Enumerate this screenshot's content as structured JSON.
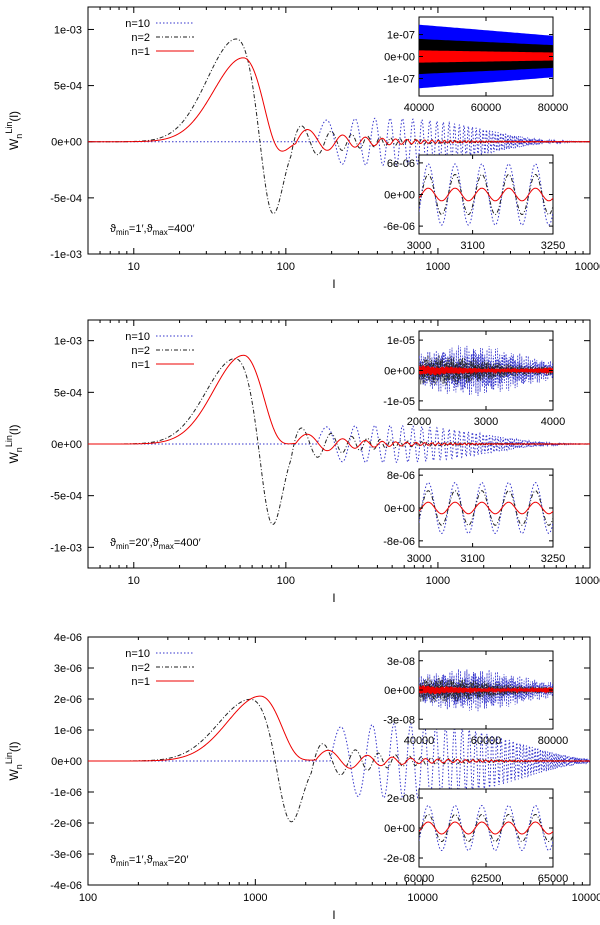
{
  "chart_data": [
    {
      "type": "line",
      "xscale": "log",
      "xlim": [
        5,
        10000
      ],
      "ylim": [
        -0.001,
        0.0012
      ],
      "xticks": [
        10,
        100,
        1000,
        10000
      ],
      "xtick_labels": [
        "10",
        "100",
        "1000",
        "10000"
      ],
      "yticks": [
        -0.001,
        -0.0005,
        0,
        0.0005,
        0.001
      ],
      "ytick_labels": [
        "-1e-03",
        "-5e-04",
        "0e+00",
        "5e-04",
        "1e-03"
      ],
      "xlabel": "l",
      "ylabel_main": "W",
      "ylabel_sub": "n",
      "ylabel_sup": "Lin",
      "ylabel_tail": "(l)",
      "annotation": {
        "t1": "ϑ",
        "s1": "min",
        "m": "=1′,ϑ",
        "s2": "max",
        "e": "=400′"
      },
      "legend": [
        "n=10",
        "n=2",
        "n=1"
      ],
      "legend_loc": "top-left",
      "series": [
        {
          "label": "n=10",
          "color": "#3333cc",
          "dash": "dotted",
          "peak": [
            0,
            0
          ],
          "freq": 0.78,
          "amp": 0.00021,
          "decay": 60
        },
        {
          "label": "n=2",
          "color": "#222222",
          "dash": "dashdot",
          "peak": [
            48,
            0.00092
          ],
          "trough": [
            80,
            -0.00085
          ],
          "freq": 0.52,
          "amp": 0.00018,
          "decay": 120
        },
        {
          "label": "n=1",
          "color": "#ee0000",
          "dash": "solid",
          "peak": [
            53,
            0.00075
          ],
          "trough": [
            86,
            -0.00025
          ],
          "freq": 0.42,
          "amp": 0.00013,
          "decay": 200
        }
      ],
      "insets": [
        {
          "position": "upper",
          "xlim": [
            40000,
            80000
          ],
          "ylim": [
            -1.8e-07,
            1.8e-07
          ],
          "xticks": [
            40000,
            60000,
            80000
          ],
          "xtick_labels": [
            "40000",
            "60000",
            "80000"
          ],
          "yticks": [
            -1e-07,
            0,
            1e-07
          ],
          "ytick_labels": [
            "-1e-07",
            "0e+00",
            "1e-07"
          ],
          "style": "band",
          "bands": [
            {
              "color": "#0000ff",
              "half": 1.45e-07
            },
            {
              "color": "#000000",
              "half": 8e-08
            },
            {
              "color": "#ff0000",
              "half": 2.8e-08
            }
          ]
        },
        {
          "position": "lower",
          "xlim": [
            3000,
            3250
          ],
          "ylim": [
            -7.5e-06,
            7.5e-06
          ],
          "xticks": [
            3000,
            3100,
            3250
          ],
          "xtick_labels": [
            "3000",
            "3100",
            "3250"
          ],
          "yticks": [
            -6e-06,
            0,
            6e-06
          ],
          "ytick_labels": [
            "-6e-06",
            "0e+00",
            "6e-06"
          ],
          "style": "wave",
          "period": 50,
          "waves": [
            {
              "color": "#3333cc",
              "amp": 5.8e-06
            },
            {
              "color": "#222222",
              "amp": 3.8e-06
            },
            {
              "color": "#ee0000",
              "amp": 1.2e-06
            }
          ]
        }
      ]
    },
    {
      "type": "line",
      "xscale": "log",
      "xlim": [
        5,
        10000
      ],
      "ylim": [
        -0.0012,
        0.0012
      ],
      "xticks": [
        10,
        100,
        1000,
        10000
      ],
      "xtick_labels": [
        "10",
        "100",
        "1000",
        "10000"
      ],
      "yticks": [
        -0.001,
        -0.0005,
        0,
        0.0005,
        0.001
      ],
      "ytick_labels": [
        "-1e-03",
        "-5e-04",
        "0e+00",
        "5e-04",
        "1e-03"
      ],
      "xlabel": "l",
      "ylabel_main": "W",
      "ylabel_sub": "n",
      "ylabel_sup": "Lin",
      "ylabel_tail": "(l)",
      "annotation": {
        "t1": "ϑ",
        "s1": "min",
        "m": "=20′,ϑ",
        "s2": "max",
        "e": "=400′"
      },
      "legend": [
        "n=10",
        "n=2",
        "n=1"
      ],
      "legend_loc": "top-left",
      "series": [
        {
          "label": "n=10",
          "color": "#3333cc",
          "dash": "dotted",
          "peak": [
            0,
            0
          ],
          "freq": 0.78,
          "amp": 0.00018,
          "decay": 60
        },
        {
          "label": "n=2",
          "color": "#222222",
          "dash": "dashdot",
          "peak": [
            47,
            0.00083
          ],
          "trough": [
            80,
            -0.00095
          ],
          "freq": 0.52,
          "amp": 0.0002,
          "decay": 120
        },
        {
          "label": "n=1",
          "color": "#ee0000",
          "dash": "solid",
          "peak": [
            53,
            0.00086
          ],
          "trough": [
            86,
            -0.00015
          ],
          "freq": 0.42,
          "amp": 0.00011,
          "decay": 200
        }
      ],
      "insets": [
        {
          "position": "upper",
          "xlim": [
            2000,
            4000
          ],
          "ylim": [
            -1.3e-05,
            1.3e-05
          ],
          "xticks": [
            2000,
            3000,
            4000
          ],
          "xtick_labels": [
            "2000",
            "3000",
            "4000"
          ],
          "yticks": [
            -1e-05,
            0,
            1e-05
          ],
          "ytick_labels": [
            "-1e-05",
            "0e+00",
            "1e-05"
          ],
          "style": "noisy",
          "noise": [
            {
              "color": "#3333cc",
              "amp": 8.5e-06,
              "f": 0.07
            },
            {
              "color": "#222222",
              "amp": 5e-06,
              "f": 0.06
            },
            {
              "color": "#ee0000",
              "amp": 1.8e-06,
              "f": 0.05
            }
          ]
        },
        {
          "position": "lower",
          "xlim": [
            3000,
            3250
          ],
          "ylim": [
            -9.5e-06,
            9.5e-06
          ],
          "xticks": [
            3000,
            3100,
            3250
          ],
          "xtick_labels": [
            "3000",
            "3100",
            "3250"
          ],
          "yticks": [
            -8e-06,
            0,
            8e-06
          ],
          "ytick_labels": [
            "-8e-06",
            "0e+00",
            "8e-06"
          ],
          "style": "wave",
          "period": 50,
          "waves": [
            {
              "color": "#3333cc",
              "amp": 6.2e-06
            },
            {
              "color": "#222222",
              "amp": 4.2e-06
            },
            {
              "color": "#ee0000",
              "amp": 1.4e-06
            }
          ]
        }
      ]
    },
    {
      "type": "line",
      "xscale": "log",
      "xlim": [
        100,
        100000
      ],
      "ylim": [
        -4e-06,
        4e-06
      ],
      "xticks": [
        100,
        1000,
        10000,
        100000
      ],
      "xtick_labels": [
        "100",
        "1000",
        "10000",
        "100000"
      ],
      "yticks": [
        -4e-06,
        -3e-06,
        -2e-06,
        -1e-06,
        0,
        1e-06,
        2e-06,
        3e-06,
        4e-06
      ],
      "ytick_labels": [
        "-4e-06",
        "-3e-06",
        "-2e-06",
        "-1e-06",
        "0e+00",
        "1e-06",
        "2e-06",
        "3e-06",
        "4e-06"
      ],
      "xlabel": "l",
      "ylabel_main": "W",
      "ylabel_sub": "n",
      "ylabel_sup": "Lin",
      "ylabel_tail": "(l)",
      "annotation": {
        "t1": "ϑ",
        "s1": "min",
        "m": "=1′,ϑ",
        "s2": "max",
        "e": "=20′"
      },
      "legend": [
        "n=10",
        "n=2",
        "n=1"
      ],
      "legend_loc": "top-left",
      "series": [
        {
          "label": "n=10",
          "color": "#3333cc",
          "dash": "dotted",
          "peak": [
            0,
            0
          ],
          "freq": 0.78,
          "amp": 1.2e-06,
          "decay": 60
        },
        {
          "label": "n=2",
          "color": "#222222",
          "dash": "dashdot",
          "peak": [
            950,
            2e-06
          ],
          "trough": [
            1600,
            -2.4e-06
          ],
          "freq": 0.52,
          "amp": 7e-07,
          "decay": 120
        },
        {
          "label": "n=1",
          "color": "#ee0000",
          "dash": "solid",
          "peak": [
            1080,
            2.1e-06
          ],
          "trough": [
            1700,
            -4e-07
          ],
          "freq": 0.42,
          "amp": 4e-07,
          "decay": 200
        }
      ],
      "insets": [
        {
          "position": "upper",
          "xlim": [
            40000,
            80000
          ],
          "ylim": [
            -4e-08,
            4e-08
          ],
          "xticks": [
            40000,
            60000,
            80000
          ],
          "xtick_labels": [
            "40000",
            "60000",
            "80000"
          ],
          "yticks": [
            -3e-08,
            0,
            3e-08
          ],
          "ytick_labels": [
            "-3e-08",
            "0e+00",
            "3e-08"
          ],
          "style": "noisy",
          "noise": [
            {
              "color": "#3333cc",
              "amp": 2.2e-08,
              "f": 0.07
            },
            {
              "color": "#222222",
              "amp": 1.3e-08,
              "f": 0.06
            },
            {
              "color": "#ee0000",
              "amp": 5e-09,
              "f": 0.05
            }
          ]
        },
        {
          "position": "lower",
          "xlim": [
            60000,
            65000
          ],
          "ylim": [
            -2.6e-08,
            2.6e-08
          ],
          "xticks": [
            60000,
            62500,
            65000
          ],
          "xtick_labels": [
            "60000",
            "62500",
            "65000"
          ],
          "yticks": [
            -2e-08,
            0,
            2e-08
          ],
          "ytick_labels": [
            "-2e-08",
            "0e+00",
            "2e-08"
          ],
          "style": "wave",
          "period": 1000,
          "waves": [
            {
              "color": "#3333cc",
              "amp": 1.5e-08
            },
            {
              "color": "#222222",
              "amp": 9e-09
            },
            {
              "color": "#ee0000",
              "amp": 4e-09
            }
          ]
        }
      ]
    }
  ]
}
